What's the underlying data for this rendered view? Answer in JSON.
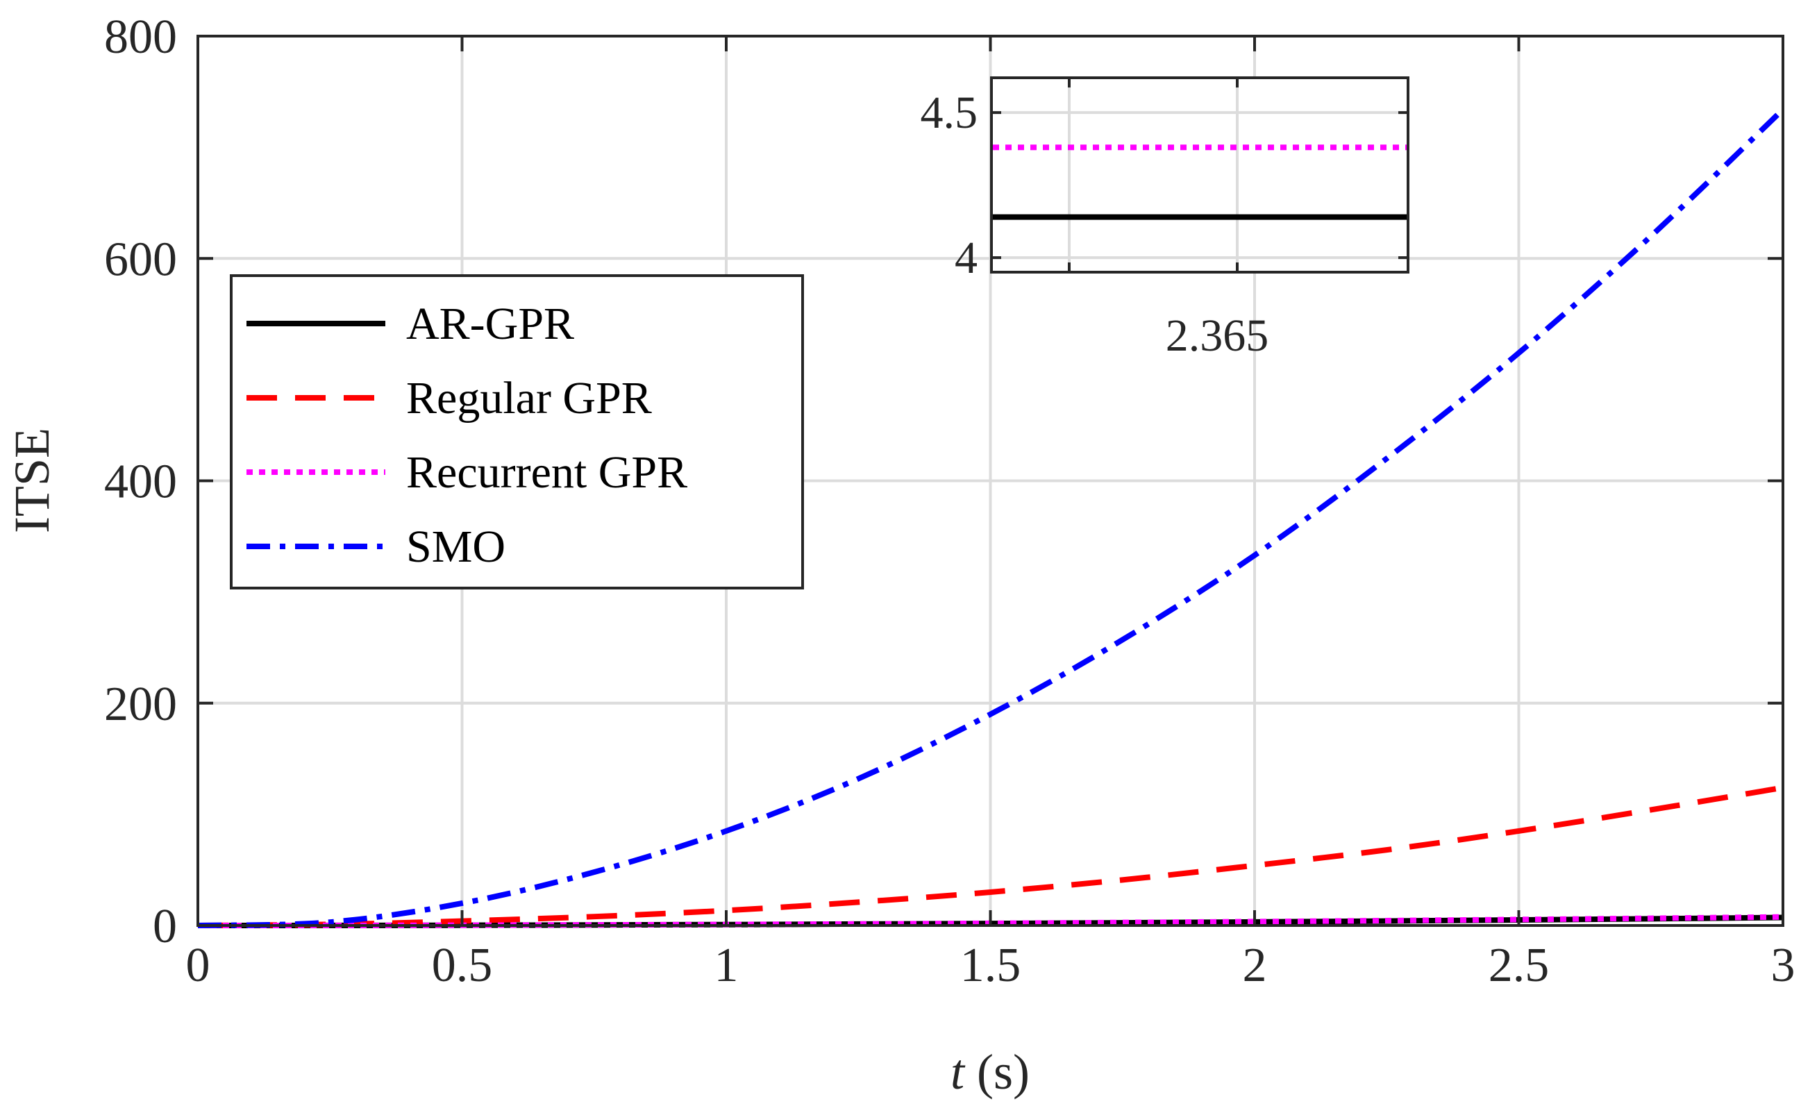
{
  "chart_data": {
    "type": "line",
    "title": "",
    "xlabel_var": "t",
    "xlabel_unit": " (s)",
    "ylabel": "ITSE",
    "xlim": [
      0,
      3
    ],
    "ylim": [
      0,
      800
    ],
    "grid": true,
    "x_ticks": [
      0,
      0.5,
      1,
      1.5,
      2,
      2.5,
      3
    ],
    "x_tick_labels": [
      "0",
      "0.5",
      "1",
      "1.5",
      "2",
      "2.5",
      "3"
    ],
    "y_ticks": [
      0,
      200,
      400,
      600,
      800
    ],
    "y_tick_labels": [
      "0",
      "200",
      "400",
      "600",
      "800"
    ],
    "legend_position": "upper-left",
    "x": [
      0,
      0.25,
      0.5,
      0.75,
      1,
      1.25,
      1.5,
      1.75,
      2,
      2.25,
      2.5,
      2.75,
      3
    ],
    "series": [
      {
        "name": "AR-GPR",
        "color": "#000000",
        "style": "solid",
        "values": [
          0,
          0.05,
          0.2,
          0.5,
          0.8,
          1.3,
          1.8,
          2.4,
          3.2,
          4.0,
          5.0,
          6.0,
          7.2
        ]
      },
      {
        "name": "Regular GPR",
        "color": "#ff0000",
        "style": "dashed",
        "values": [
          0,
          1.0,
          4.0,
          8.0,
          13.5,
          21,
          30,
          41,
          54,
          68,
          85,
          104,
          124
        ]
      },
      {
        "name": "Recurrent GPR",
        "color": "#ff00ff",
        "style": "dotted",
        "values": [
          0,
          0.06,
          0.25,
          0.55,
          0.9,
          1.4,
          2.0,
          2.7,
          3.5,
          4.4,
          5.4,
          6.5,
          7.7
        ]
      },
      {
        "name": "SMO",
        "color": "#0000ff",
        "style": "dashdot",
        "values": [
          0,
          3,
          20,
          48,
          85,
          132,
          190,
          257,
          333,
          420,
          515,
          620,
          734
        ]
      }
    ],
    "inset": {
      "ylim": [
        3.95,
        4.62
      ],
      "y_ticks": [
        4,
        4.5
      ],
      "y_tick_labels": [
        "4",
        "4.5"
      ],
      "x_label": "2.365",
      "series": [
        {
          "name": "AR-GPR",
          "color": "#000000",
          "style": "solid",
          "value": 4.14
        },
        {
          "name": "Recurrent GPR",
          "color": "#ff00ff",
          "style": "dotted",
          "value": 4.38
        }
      ]
    }
  }
}
